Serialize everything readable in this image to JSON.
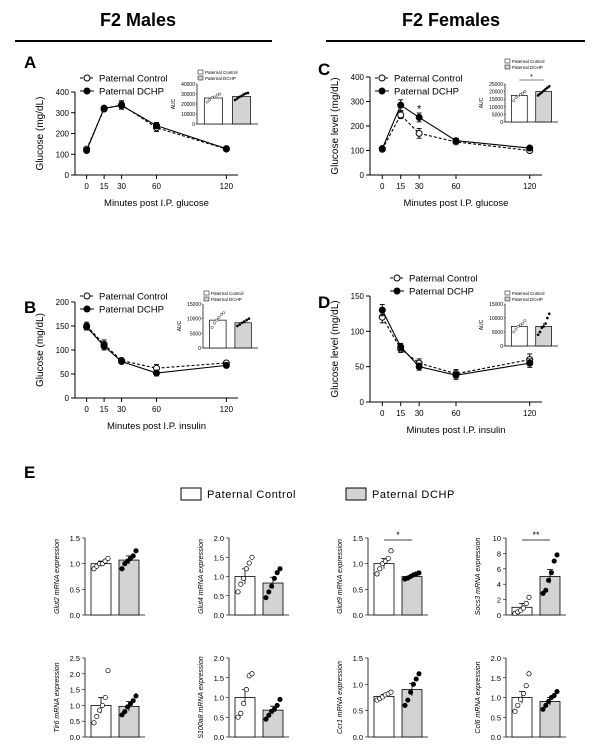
{
  "headers": {
    "left": "F2 Males",
    "right": "F2 Females"
  },
  "legend": {
    "control": "Paternal Control",
    "dchp": "Paternal DCHP"
  },
  "legend_e": {
    "control": "Paternal Control",
    "dchp": "Paternal DCHP"
  },
  "colors": {
    "control_fill": "#ffffff",
    "dchp_fill": "#000000",
    "bar_dchp": "#d3d3d3",
    "line": "#000000"
  },
  "chart_data": [
    {
      "panel": "A",
      "type": "line",
      "xlabel": "Minutes post I.P. glucose",
      "ylabel": "Glucose (mg/dL)",
      "x": [
        0,
        15,
        30,
        60,
        120
      ],
      "xlim": [
        -10,
        130
      ],
      "ylim": [
        0,
        400
      ],
      "yticks": [
        0,
        100,
        200,
        300,
        400
      ],
      "series": [
        {
          "name": "Paternal Control",
          "values": [
            125,
            318,
            338,
            228,
            125
          ],
          "err": [
            8,
            12,
            20,
            18,
            6
          ]
        },
        {
          "name": "Paternal DCHP",
          "values": [
            118,
            322,
            335,
            238,
            127
          ],
          "err": [
            8,
            10,
            18,
            15,
            6
          ]
        }
      ],
      "inset": {
        "ylabel": "AUC",
        "yticks": [
          0,
          10000,
          20000,
          30000,
          40000
        ],
        "ymax": 40000,
        "values": [
          26000,
          27500
        ],
        "err": [
          1500,
          1300
        ],
        "points": [
          [
            22000,
            24000,
            26500,
            27000,
            29000,
            30000
          ],
          [
            24000,
            25500,
            27000,
            28000,
            29500,
            30500,
            31000
          ]
        ],
        "legend": [
          "Paternal Control",
          "Paternal DCHP"
        ]
      }
    },
    {
      "panel": "B",
      "type": "line",
      "xlabel": "Minutes post I.P. insulin",
      "ylabel": "Glucose (mg/dL)",
      "x": [
        0,
        15,
        30,
        60,
        120
      ],
      "xlim": [
        -10,
        130
      ],
      "ylim": [
        0,
        200
      ],
      "yticks": [
        0,
        50,
        100,
        150,
        200
      ],
      "series": [
        {
          "name": "Paternal Control",
          "values": [
            150,
            112,
            78,
            62,
            73
          ],
          "err": [
            8,
            9,
            5,
            8,
            4
          ]
        },
        {
          "name": "Paternal DCHP",
          "values": [
            148,
            108,
            76,
            52,
            68
          ],
          "err": [
            6,
            8,
            4,
            6,
            5
          ]
        }
      ],
      "inset": {
        "ylabel": "AUC",
        "yticks": [
          0,
          5000,
          10000,
          15000
        ],
        "ymax": 15000,
        "values": [
          9500,
          8600
        ],
        "err": [
          800,
          500
        ],
        "points": [
          [
            7000,
            8500,
            9500,
            10500,
            11500,
            12000
          ],
          [
            7500,
            8000,
            8600,
            9000,
            9500,
            10000
          ]
        ],
        "legend": [
          "Paternal Control",
          "Paternal DCHP"
        ]
      }
    },
    {
      "panel": "C",
      "type": "line",
      "xlabel": "Minutes post I.P. glucose",
      "ylabel": "Glucose  level (mg/dL)",
      "x": [
        0,
        15,
        30,
        60,
        120
      ],
      "xlim": [
        -10,
        130
      ],
      "ylim": [
        0,
        400
      ],
      "yticks": [
        0,
        100,
        200,
        300,
        400
      ],
      "annotations": [
        {
          "x": 30,
          "y": 255,
          "text": "*"
        }
      ],
      "series": [
        {
          "name": "Paternal Control",
          "values": [
            105,
            245,
            170,
            135,
            100
          ],
          "err": [
            6,
            15,
            20,
            8,
            5
          ]
        },
        {
          "name": "Paternal DCHP",
          "values": [
            108,
            285,
            235,
            140,
            110
          ],
          "err": [
            5,
            22,
            18,
            10,
            6
          ]
        }
      ],
      "inset": {
        "ylabel": "AUC",
        "yticks": [
          0,
          5000,
          10000,
          15000,
          20000,
          25000
        ],
        "ymax": 25000,
        "values": [
          17500,
          20000
        ],
        "err": [
          1000,
          1000
        ],
        "points": [
          [
            14000,
            16000,
            17000,
            18000,
            19000,
            20000
          ],
          [
            17500,
            18500,
            19500,
            20500,
            21500,
            22500,
            23500
          ]
        ],
        "legend": [
          "Paternal Control",
          "Paternal DCHP"
        ],
        "sig": "*"
      }
    },
    {
      "panel": "D",
      "type": "line",
      "xlabel": "Minutes post I.P. insulin",
      "ylabel": "Glucose  level (mg/dL)",
      "x": [
        0,
        15,
        30,
        60,
        120
      ],
      "xlim": [
        -10,
        130
      ],
      "ylim": [
        0,
        150
      ],
      "yticks": [
        0,
        50,
        100,
        150
      ],
      "series": [
        {
          "name": "Paternal Control",
          "values": [
            120,
            75,
            55,
            40,
            60
          ],
          "err": [
            8,
            5,
            6,
            6,
            8
          ]
        },
        {
          "name": "Paternal DCHP",
          "values": [
            130,
            78,
            50,
            38,
            55
          ],
          "err": [
            8,
            5,
            5,
            6,
            6
          ]
        }
      ],
      "inset": {
        "ylabel": "AUC",
        "yticks": [
          0,
          5000,
          10000,
          15000
        ],
        "ymax": 15000,
        "values": [
          7000,
          7000
        ],
        "err": [
          700,
          1200
        ],
        "points": [
          [
            5000,
            6000,
            7000,
            7500,
            8000,
            9000
          ],
          [
            4000,
            5000,
            6500,
            7000,
            8000,
            10000,
            11500
          ]
        ],
        "legend": [
          "Paternal Control",
          "Paternal DCHP"
        ]
      }
    },
    {
      "panel": "E",
      "type": "bar",
      "ylabel": "Glut2 mRNA expression",
      "yticks": [
        "0.0",
        "0.5",
        "1.0",
        "1.5"
      ],
      "ymax": 1.5,
      "values": [
        1.0,
        1.07
      ],
      "err": [
        0.05,
        0.08
      ],
      "points": [
        [
          0.9,
          0.95,
          1.0,
          1.0,
          1.05,
          1.1
        ],
        [
          0.9,
          1.0,
          1.05,
          1.1,
          1.15,
          1.25
        ]
      ]
    },
    {
      "panel": "E",
      "type": "bar",
      "ylabel": "Glut4 mRNA expression",
      "yticks": [
        "0.0",
        "0.5",
        "1.0",
        "1.5",
        "2.0"
      ],
      "ymax": 2.0,
      "values": [
        1.0,
        0.83
      ],
      "err": [
        0.2,
        0.15
      ],
      "points": [
        [
          0.6,
          0.8,
          0.95,
          1.2,
          1.35,
          1.5
        ],
        [
          0.45,
          0.6,
          0.75,
          0.95,
          1.1,
          1.2
        ]
      ]
    },
    {
      "panel": "E",
      "type": "bar",
      "ylabel": "Glut9 mRNA expression",
      "yticks": [
        "0.0",
        "0.5",
        "1.0",
        "1.5"
      ],
      "ymax": 1.5,
      "values": [
        1.0,
        0.75
      ],
      "err": [
        0.1,
        0.03
      ],
      "sig": "*",
      "points": [
        [
          0.8,
          0.9,
          1.0,
          1.05,
          1.1,
          1.25
        ],
        [
          0.7,
          0.72,
          0.75,
          0.78,
          0.8,
          0.82
        ]
      ]
    },
    {
      "panel": "E",
      "type": "bar",
      "ylabel": "Socs3 mRNA expression",
      "yticks": [
        "0",
        "2",
        "4",
        "6",
        "8",
        "10"
      ],
      "ymax": 10,
      "values": [
        1.0,
        5.0
      ],
      "err": [
        0.5,
        0.9
      ],
      "sig": "**",
      "points": [
        [
          0.2,
          0.4,
          0.6,
          0.9,
          1.5,
          2.3
        ],
        [
          2.8,
          3.2,
          4.5,
          5.5,
          7.0,
          7.8
        ]
      ]
    },
    {
      "panel": "E",
      "type": "bar",
      "ylabel": "Tlr6 mRNA expression",
      "yticks": [
        "0.0",
        "0.5",
        "1.0",
        "1.5",
        "2.0",
        "2.5"
      ],
      "ymax": 2.5,
      "values": [
        1.0,
        0.97
      ],
      "err": [
        0.25,
        0.15
      ],
      "points": [
        [
          0.45,
          0.65,
          0.85,
          1.0,
          1.25,
          2.1
        ],
        [
          0.7,
          0.8,
          0.95,
          1.05,
          1.15,
          1.3
        ]
      ]
    },
    {
      "panel": "E",
      "type": "bar",
      "ylabel": "S100a8 mRNA expression",
      "yticks": [
        "0.0",
        "0.5",
        "1.0",
        "1.5",
        "2.0"
      ],
      "ymax": 2.0,
      "values": [
        1.0,
        0.68
      ],
      "err": [
        0.2,
        0.1
      ],
      "points": [
        [
          0.5,
          0.6,
          0.85,
          1.2,
          1.55,
          1.6
        ],
        [
          0.45,
          0.55,
          0.65,
          0.7,
          0.8,
          0.95
        ]
      ]
    },
    {
      "panel": "E",
      "type": "bar",
      "ylabel": "Ccr1 mRNA expression",
      "yticks": [
        "0.0",
        "0.5",
        "1.0",
        "1.5"
      ],
      "ymax": 1.5,
      "values": [
        0.77,
        0.9
      ],
      "err": [
        0.04,
        0.12
      ],
      "points": [
        [
          0.7,
          0.73,
          0.76,
          0.8,
          0.82,
          0.85
        ],
        [
          0.6,
          0.7,
          0.85,
          1.0,
          1.1,
          1.2
        ]
      ]
    },
    {
      "panel": "E",
      "type": "bar",
      "ylabel": "Ccl6 mRNA expression",
      "yticks": [
        "0.0",
        "0.5",
        "1.0",
        "1.5",
        "2.0"
      ],
      "ymax": 2.0,
      "values": [
        1.0,
        0.9
      ],
      "err": [
        0.15,
        0.1
      ],
      "points": [
        [
          0.65,
          0.8,
          0.95,
          1.1,
          1.3,
          1.6
        ],
        [
          0.7,
          0.8,
          0.9,
          1.0,
          1.05,
          1.15
        ]
      ]
    }
  ],
  "panel_labels": [
    "A",
    "B",
    "C",
    "D",
    "E"
  ]
}
